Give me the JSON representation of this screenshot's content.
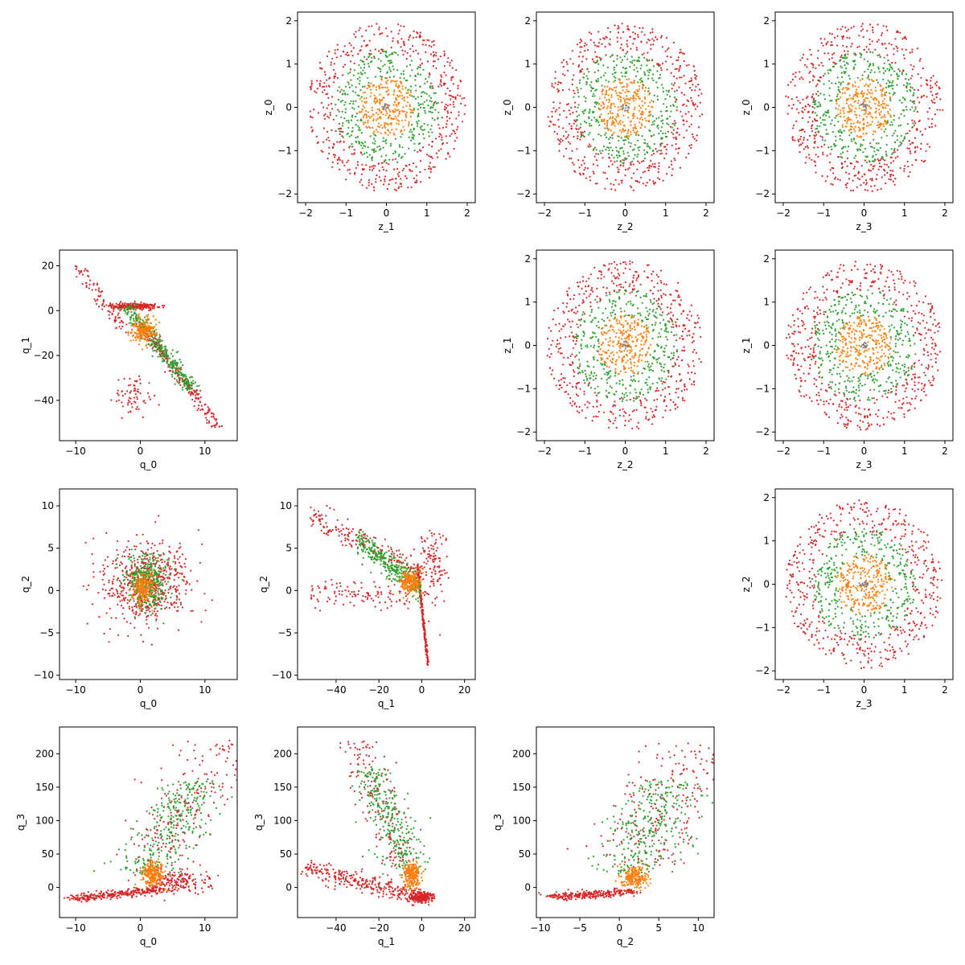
{
  "colors": {
    "red": "#d62728",
    "green": "#2ca02c",
    "orange": "#ff7f0e",
    "gray": "#7f7f7f"
  },
  "chart_data": [
    {
      "id": "z1_z0",
      "type": "scatter",
      "title": "",
      "xlabel": "z_1",
      "ylabel": "z_0",
      "xlim": [
        -2.2,
        2.2
      ],
      "ylim": [
        -2.2,
        2.2
      ],
      "xticks": [
        -2,
        -1,
        0,
        1,
        2
      ],
      "yticks": [
        -2,
        -1,
        0,
        1,
        2
      ],
      "series": [
        {
          "color": "#d62728",
          "shape": "ring",
          "center": [
            0,
            0
          ],
          "r_inner": 1.2,
          "r_outer": 1.95,
          "n": 500
        },
        {
          "color": "#2ca02c",
          "shape": "ring",
          "center": [
            0,
            0
          ],
          "r_inner": 0.65,
          "r_outer": 1.3,
          "n": 350
        },
        {
          "color": "#ff7f0e",
          "shape": "disk",
          "center": [
            0,
            0
          ],
          "r_inner": 0,
          "r_outer": 0.7,
          "n": 260
        },
        {
          "color": "#7f7f7f",
          "shape": "disk",
          "center": [
            0,
            0
          ],
          "r_inner": 0,
          "r_outer": 0.1,
          "n": 12
        }
      ]
    },
    {
      "id": "z2_z0",
      "type": "scatter",
      "title": "",
      "xlabel": "z_2",
      "ylabel": "z_0",
      "xlim": [
        -2.2,
        2.2
      ],
      "ylim": [
        -2.2,
        2.2
      ],
      "xticks": [
        -2,
        -1,
        0,
        1,
        2
      ],
      "yticks": [
        -2,
        -1,
        0,
        1,
        2
      ],
      "series": [
        {
          "color": "#d62728",
          "shape": "ring",
          "center": [
            0,
            0
          ],
          "r_inner": 1.2,
          "r_outer": 1.95,
          "n": 500
        },
        {
          "color": "#2ca02c",
          "shape": "ring",
          "center": [
            0,
            0
          ],
          "r_inner": 0.65,
          "r_outer": 1.3,
          "n": 350
        },
        {
          "color": "#ff7f0e",
          "shape": "disk",
          "center": [
            0,
            0
          ],
          "r_inner": 0,
          "r_outer": 0.7,
          "n": 260
        },
        {
          "color": "#7f7f7f",
          "shape": "disk",
          "center": [
            0,
            0
          ],
          "r_inner": 0,
          "r_outer": 0.1,
          "n": 12
        }
      ]
    },
    {
      "id": "z3_z0",
      "type": "scatter",
      "title": "",
      "xlabel": "z_3",
      "ylabel": "z_0",
      "xlim": [
        -2.2,
        2.2
      ],
      "ylim": [
        -2.2,
        2.2
      ],
      "xticks": [
        -2,
        -1,
        0,
        1,
        2
      ],
      "yticks": [
        -2,
        -1,
        0,
        1,
        2
      ],
      "series": [
        {
          "color": "#d62728",
          "shape": "ring",
          "center": [
            0,
            0
          ],
          "r_inner": 1.2,
          "r_outer": 1.95,
          "n": 500
        },
        {
          "color": "#2ca02c",
          "shape": "ring",
          "center": [
            0,
            0
          ],
          "r_inner": 0.65,
          "r_outer": 1.3,
          "n": 350
        },
        {
          "color": "#ff7f0e",
          "shape": "disk",
          "center": [
            0,
            0
          ],
          "r_inner": 0,
          "r_outer": 0.7,
          "n": 260
        },
        {
          "color": "#7f7f7f",
          "shape": "disk",
          "center": [
            0,
            0
          ],
          "r_inner": 0,
          "r_outer": 0.1,
          "n": 12
        }
      ]
    },
    {
      "id": "q0_q1",
      "type": "scatter",
      "title": "",
      "xlabel": "q_0",
      "ylabel": "q_1",
      "xlim": [
        -12.5,
        15
      ],
      "ylim": [
        -58,
        27
      ],
      "xticks": [
        -10,
        0,
        10
      ],
      "yticks": [
        -40,
        -20,
        0,
        20
      ],
      "series": [
        {
          "color": "#d62728",
          "shape": "blob",
          "center": [
            -1,
            2
          ],
          "spread": [
            3,
            1.2
          ],
          "n": 250
        },
        {
          "color": "#d62728",
          "shape": "band",
          "from": [
            0,
            -5
          ],
          "to": [
            12,
            -52
          ],
          "width": 3,
          "n": 230
        },
        {
          "color": "#d62728",
          "shape": "band",
          "from": [
            -10,
            20
          ],
          "to": [
            -2,
            -10
          ],
          "width": 3,
          "n": 90
        },
        {
          "color": "#d62728",
          "shape": "blob",
          "center": [
            -1,
            -38
          ],
          "spread": [
            2.5,
            8
          ],
          "n": 70
        },
        {
          "color": "#2ca02c",
          "shape": "band",
          "from": [
            -2,
            2
          ],
          "to": [
            8,
            -35
          ],
          "width": 3.5,
          "n": 330
        },
        {
          "color": "#ff7f0e",
          "shape": "blob",
          "center": [
            0.5,
            -9
          ],
          "spread": [
            1.6,
            5
          ],
          "n": 220
        }
      ]
    },
    {
      "id": "z2_z1",
      "type": "scatter",
      "title": "",
      "xlabel": "z_2",
      "ylabel": "z_1",
      "xlim": [
        -2.2,
        2.2
      ],
      "ylim": [
        -2.2,
        2.2
      ],
      "xticks": [
        -2,
        -1,
        0,
        1,
        2
      ],
      "yticks": [
        -2,
        -1,
        0,
        1,
        2
      ],
      "series": [
        {
          "color": "#d62728",
          "shape": "ring",
          "center": [
            0,
            0
          ],
          "r_inner": 1.2,
          "r_outer": 1.95,
          "n": 500
        },
        {
          "color": "#2ca02c",
          "shape": "ring",
          "center": [
            0,
            0
          ],
          "r_inner": 0.65,
          "r_outer": 1.3,
          "n": 350
        },
        {
          "color": "#ff7f0e",
          "shape": "disk",
          "center": [
            0,
            0
          ],
          "r_inner": 0,
          "r_outer": 0.7,
          "n": 260
        },
        {
          "color": "#7f7f7f",
          "shape": "disk",
          "center": [
            0,
            0
          ],
          "r_inner": 0,
          "r_outer": 0.1,
          "n": 12
        }
      ]
    },
    {
      "id": "z3_z1",
      "type": "scatter",
      "title": "",
      "xlabel": "z_3",
      "ylabel": "z_1",
      "xlim": [
        -2.2,
        2.2
      ],
      "ylim": [
        -2.2,
        2.2
      ],
      "xticks": [
        -2,
        -1,
        0,
        1,
        2
      ],
      "yticks": [
        -2,
        -1,
        0,
        1,
        2
      ],
      "series": [
        {
          "color": "#d62728",
          "shape": "ring",
          "center": [
            0,
            0
          ],
          "r_inner": 1.2,
          "r_outer": 1.95,
          "n": 500
        },
        {
          "color": "#2ca02c",
          "shape": "ring",
          "center": [
            0,
            0
          ],
          "r_inner": 0.65,
          "r_outer": 1.3,
          "n": 350
        },
        {
          "color": "#ff7f0e",
          "shape": "disk",
          "center": [
            0,
            0
          ],
          "r_inner": 0,
          "r_outer": 0.7,
          "n": 260
        },
        {
          "color": "#7f7f7f",
          "shape": "disk",
          "center": [
            0,
            0
          ],
          "r_inner": 0,
          "r_outer": 0.1,
          "n": 12
        }
      ]
    },
    {
      "id": "q0_q2",
      "type": "scatter",
      "title": "",
      "xlabel": "q_0",
      "ylabel": "q_2",
      "xlim": [
        -12.5,
        15
      ],
      "ylim": [
        -10.5,
        12
      ],
      "xticks": [
        -10,
        0,
        10
      ],
      "yticks": [
        -10,
        -5,
        0,
        5,
        10
      ],
      "series": [
        {
          "color": "#d62728",
          "shape": "blob",
          "center": [
            1,
            1
          ],
          "spread": [
            5.5,
            4
          ],
          "n": 620
        },
        {
          "color": "#2ca02c",
          "shape": "blob",
          "center": [
            1,
            1
          ],
          "spread": [
            2.8,
            2.6
          ],
          "n": 360
        },
        {
          "color": "#ff7f0e",
          "shape": "blob",
          "center": [
            0.5,
            0.5
          ],
          "spread": [
            1.5,
            1.5
          ],
          "n": 220
        }
      ]
    },
    {
      "id": "q1_q2",
      "type": "scatter",
      "title": "",
      "xlabel": "q_1",
      "ylabel": "q_2",
      "xlim": [
        -58,
        25
      ],
      "ylim": [
        -10.5,
        12
      ],
      "xticks": [
        -40,
        -20,
        0,
        20
      ],
      "yticks": [
        -10,
        -5,
        0,
        5,
        10
      ],
      "series": [
        {
          "color": "#d62728",
          "shape": "band",
          "from": [
            -52,
            9
          ],
          "to": [
            0,
            2
          ],
          "width": 1.5,
          "n": 200
        },
        {
          "color": "#d62728",
          "shape": "band",
          "from": [
            -52,
            0
          ],
          "to": [
            -5,
            -1
          ],
          "width": 1.5,
          "n": 110
        },
        {
          "color": "#d62728",
          "shape": "band",
          "from": [
            -2,
            3
          ],
          "to": [
            3,
            -9
          ],
          "width": 0.9,
          "n": 260
        },
        {
          "color": "#d62728",
          "shape": "blob",
          "center": [
            5,
            3
          ],
          "spread": [
            6,
            4
          ],
          "n": 120
        },
        {
          "color": "#2ca02c",
          "shape": "band",
          "from": [
            -30,
            6
          ],
          "to": [
            0,
            0
          ],
          "width": 1.6,
          "n": 320
        },
        {
          "color": "#ff7f0e",
          "shape": "blob",
          "center": [
            -5,
            1
          ],
          "spread": [
            4,
            1.2
          ],
          "n": 210
        }
      ]
    },
    {
      "id": "z3_z2",
      "type": "scatter",
      "title": "",
      "xlabel": "z_3",
      "ylabel": "z_2",
      "xlim": [
        -2.2,
        2.2
      ],
      "ylim": [
        -2.2,
        2.2
      ],
      "xticks": [
        -2,
        -1,
        0,
        1,
        2
      ],
      "yticks": [
        -2,
        -1,
        0,
        1,
        2
      ],
      "series": [
        {
          "color": "#d62728",
          "shape": "ring",
          "center": [
            0,
            0
          ],
          "r_inner": 1.2,
          "r_outer": 1.95,
          "n": 500
        },
        {
          "color": "#2ca02c",
          "shape": "ring",
          "center": [
            0,
            0
          ],
          "r_inner": 0.65,
          "r_outer": 1.3,
          "n": 350
        },
        {
          "color": "#ff7f0e",
          "shape": "disk",
          "center": [
            0,
            0
          ],
          "r_inner": 0,
          "r_outer": 0.7,
          "n": 260
        },
        {
          "color": "#7f7f7f",
          "shape": "disk",
          "center": [
            0,
            0
          ],
          "r_inner": 0,
          "r_outer": 0.1,
          "n": 12
        }
      ]
    },
    {
      "id": "q0_q3",
      "type": "scatter",
      "title": "",
      "xlabel": "q_0",
      "ylabel": "q_3",
      "xlim": [
        -12.5,
        15
      ],
      "ylim": [
        -45,
        240
      ],
      "xticks": [
        -10,
        0,
        10
      ],
      "yticks": [
        0,
        50,
        100,
        150,
        200
      ],
      "series": [
        {
          "color": "#d62728",
          "shape": "band",
          "from": [
            -11,
            -18
          ],
          "to": [
            4,
            -2
          ],
          "width": 6,
          "n": 300
        },
        {
          "color": "#d62728",
          "shape": "band",
          "from": [
            2,
            40
          ],
          "to": [
            13,
            220
          ],
          "width": 18,
          "n": 200
        },
        {
          "color": "#d62728",
          "shape": "blob",
          "center": [
            6,
            10
          ],
          "spread": [
            4,
            15
          ],
          "n": 180
        },
        {
          "color": "#2ca02c",
          "shape": "band",
          "from": [
            0,
            20
          ],
          "to": [
            9,
            160
          ],
          "width": 15,
          "n": 300
        },
        {
          "color": "#ff7f0e",
          "shape": "blob",
          "center": [
            2,
            20
          ],
          "spread": [
            1.5,
            16
          ],
          "n": 220
        }
      ]
    },
    {
      "id": "q1_q3",
      "type": "scatter",
      "title": "",
      "xlabel": "q_1",
      "ylabel": "q_3",
      "xlim": [
        -58,
        25
      ],
      "ylim": [
        -45,
        240
      ],
      "xticks": [
        -40,
        -20,
        0,
        20
      ],
      "yticks": [
        0,
        50,
        100,
        150,
        200
      ],
      "series": [
        {
          "color": "#d62728",
          "shape": "band",
          "from": [
            -55,
            30
          ],
          "to": [
            0,
            -15
          ],
          "width": 15,
          "n": 300
        },
        {
          "color": "#d62728",
          "shape": "band",
          "from": [
            -30,
            220
          ],
          "to": [
            -10,
            30
          ],
          "width": 30,
          "n": 170
        },
        {
          "color": "#d62728",
          "shape": "blob",
          "center": [
            0,
            -15
          ],
          "spread": [
            4,
            7
          ],
          "n": 200
        },
        {
          "color": "#2ca02c",
          "shape": "band",
          "from": [
            -25,
            180
          ],
          "to": [
            -5,
            20
          ],
          "width": 28,
          "n": 300
        },
        {
          "color": "#ff7f0e",
          "shape": "blob",
          "center": [
            -5,
            20
          ],
          "spread": [
            3,
            16
          ],
          "n": 220
        }
      ]
    },
    {
      "id": "q2_q3",
      "type": "scatter",
      "title": "",
      "xlabel": "q_2",
      "ylabel": "q_3",
      "xlim": [
        -10.5,
        12
      ],
      "ylim": [
        -45,
        240
      ],
      "xticks": [
        -10,
        -5,
        0,
        5,
        10
      ],
      "yticks": [
        0,
        50,
        100,
        150,
        200
      ],
      "series": [
        {
          "color": "#d62728",
          "shape": "band",
          "from": [
            -9,
            -15
          ],
          "to": [
            2,
            -5
          ],
          "width": 6,
          "n": 280
        },
        {
          "color": "#d62728",
          "shape": "band",
          "from": [
            2,
            30
          ],
          "to": [
            10,
            220
          ],
          "width": 20,
          "n": 230
        },
        {
          "color": "#2ca02c",
          "shape": "band",
          "from": [
            1,
            20
          ],
          "to": [
            7,
            160
          ],
          "width": 15,
          "n": 300
        },
        {
          "color": "#ff7f0e",
          "shape": "blob",
          "center": [
            2,
            15
          ],
          "spread": [
            1.3,
            14
          ],
          "n": 220
        }
      ]
    }
  ]
}
